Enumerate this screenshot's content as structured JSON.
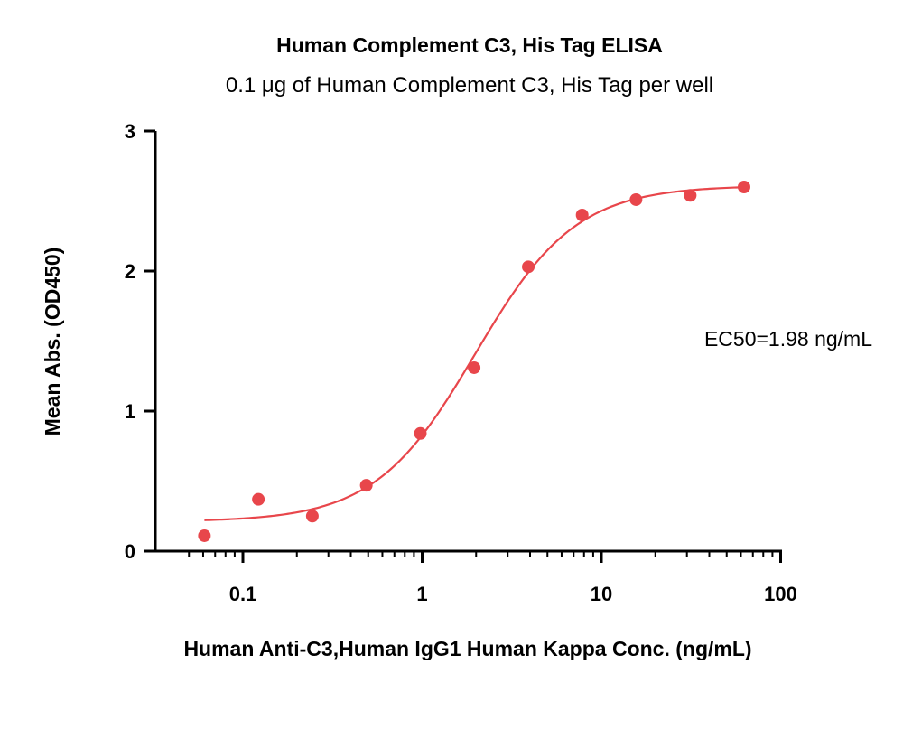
{
  "chart_data": {
    "type": "scatter",
    "title": "Human Complement C3, His Tag ELISA",
    "subtitle": "0.1 μg of Human Complement C3, His Tag per well",
    "xlabel": "Human Anti-C3,Human IgG1  Human Kappa Conc. (ng/mL)",
    "ylabel": "Mean Abs. (OD450)",
    "x_scale": "log",
    "xlim": [
      0.05,
      100
    ],
    "ylim": [
      0,
      3
    ],
    "x_ticks": [
      {
        "value": 0.1,
        "label": "0.1"
      },
      {
        "value": 1,
        "label": "1"
      },
      {
        "value": 10,
        "label": "10"
      },
      {
        "value": 100,
        "label": "100"
      }
    ],
    "y_ticks": [
      {
        "value": 0,
        "label": "0"
      },
      {
        "value": 1,
        "label": "1"
      },
      {
        "value": 2,
        "label": "2"
      },
      {
        "value": 3,
        "label": "3"
      }
    ],
    "series": [
      {
        "color": "#e8464b",
        "x": [
          0.061,
          0.122,
          0.244,
          0.488,
          0.977,
          1.95,
          3.91,
          7.81,
          15.6,
          31.3,
          62.5
        ],
        "y": [
          0.11,
          0.37,
          0.25,
          0.47,
          0.84,
          1.31,
          2.03,
          2.4,
          2.51,
          2.54,
          2.6
        ]
      }
    ],
    "fit_curve": {
      "type": "4PL",
      "bottom": 0.21,
      "top": 2.61,
      "ec50": 1.98,
      "hill": 1.55,
      "color": "#e8464b"
    },
    "annotations": [
      {
        "text": "EC50=1.98 ng/mL"
      }
    ],
    "grid": false,
    "legend": "none"
  }
}
